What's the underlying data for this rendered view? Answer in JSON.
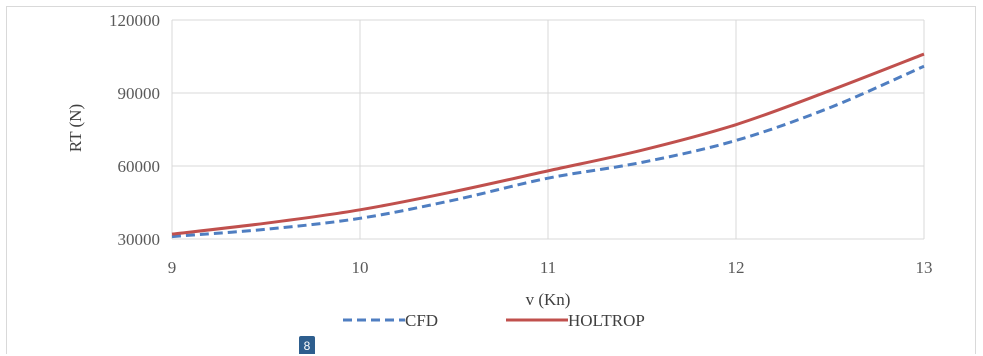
{
  "chart_data": {
    "type": "line",
    "xlabel": "v (Kn)",
    "ylabel": "RT (N)",
    "xlim": [
      9,
      13
    ],
    "ylim": [
      30000,
      120000
    ],
    "x_ticks": [
      "9",
      "10",
      "11",
      "12",
      "13"
    ],
    "y_ticks": [
      "30000",
      "60000",
      "90000",
      "120000"
    ],
    "grid": true,
    "legend_position": "bottom",
    "series": [
      {
        "name": "CFD",
        "style": "dashed",
        "color": "#4f7ec1",
        "x": [
          9,
          9.5,
          10,
          10.5,
          11,
          11.5,
          12,
          12.5,
          13
        ],
        "y": [
          31000,
          34000,
          38500,
          46000,
          55000,
          61500,
          70500,
          84000,
          101000
        ]
      },
      {
        "name": "HOLTROP",
        "style": "solid",
        "color": "#c0504d",
        "x": [
          9,
          9.5,
          10,
          10.5,
          11,
          11.5,
          12,
          12.5,
          13
        ],
        "y": [
          32000,
          36500,
          42000,
          49500,
          58000,
          66500,
          77000,
          91000,
          106000
        ]
      }
    ]
  },
  "page_badge": "8"
}
